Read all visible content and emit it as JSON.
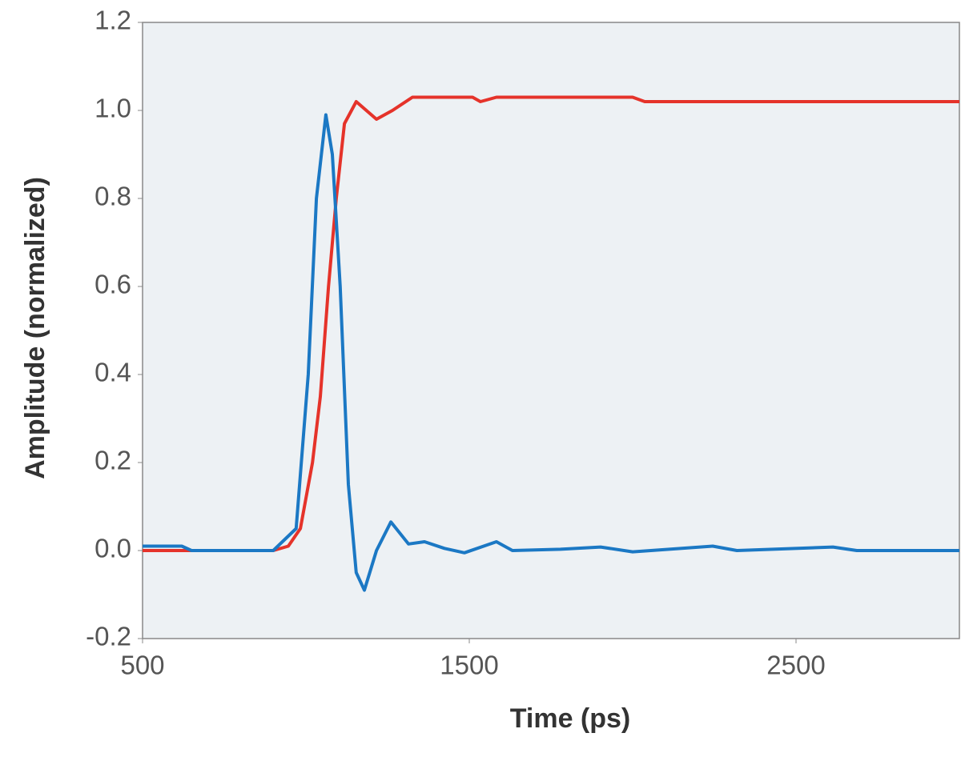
{
  "chart_data": {
    "type": "line",
    "xlabel": "Time (ps)",
    "ylabel": "Amplitude (normalized)",
    "xlim": [
      500,
      3000
    ],
    "xticks": [
      500,
      1500,
      2500
    ],
    "ylim": [
      -0.2,
      1.2
    ],
    "yticks": [
      -0.2,
      {
        "value": 0,
        "label": "0.0"
      },
      0.2,
      0.4,
      0.6,
      0.8,
      {
        "value": 1,
        "label": "1.0"
      },
      1.2
    ],
    "series": [
      {
        "color": "#e5332a",
        "x": [
          500,
          700,
          900,
          946,
          983,
          1020,
          1044,
          1069,
          1093,
          1118,
          1154,
          1216,
          1265,
          1326,
          1510,
          1534,
          1583,
          2000,
          2037,
          3000
        ],
        "values": [
          0,
          0,
          0,
          0.01,
          0.05,
          0.2,
          0.35,
          0.6,
          0.8,
          0.97,
          1.02,
          0.98,
          1.0,
          1.03,
          1.03,
          1.02,
          1.03,
          1.03,
          1.02,
          1.02
        ]
      },
      {
        "color": "#1b78c4",
        "x": [
          500,
          620,
          650,
          900,
          970,
          1007,
          1032,
          1061,
          1081,
          1105,
          1130,
          1154,
          1179,
          1216,
          1260,
          1314,
          1363,
          1424,
          1485,
          1583,
          1632,
          1779,
          1902,
          2000,
          2245,
          2319,
          2613,
          2686,
          3000
        ],
        "values": [
          0.01,
          0.01,
          0,
          0,
          0.05,
          0.4,
          0.8,
          0.99,
          0.9,
          0.6,
          0.15,
          -0.05,
          -0.09,
          0,
          0.065,
          0.015,
          0.02,
          0.005,
          -0.005,
          0.02,
          0,
          0.003,
          0.008,
          -0.003,
          0.01,
          0,
          0.008,
          0,
          0
        ]
      }
    ],
    "plot_background": "#edf1f4"
  }
}
